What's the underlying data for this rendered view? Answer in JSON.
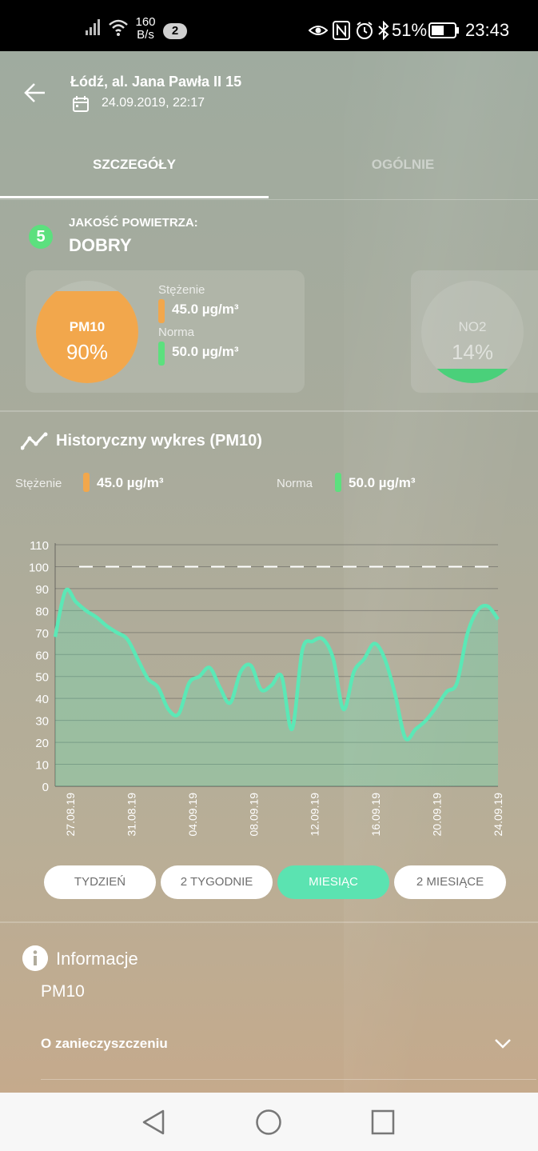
{
  "status_bar": {
    "net_speed_value": "160",
    "net_speed_unit": "B/s",
    "notification_count": "2",
    "battery": "51%",
    "time": "23:43"
  },
  "header": {
    "location": "Łódź, al. Jana Pawła II 15",
    "datetime": "24.09.2019, 22:17"
  },
  "tabs": [
    {
      "label": "SZCZEGÓŁY",
      "active": true
    },
    {
      "label": "OGÓLNIE",
      "active": false
    }
  ],
  "air_quality": {
    "index": "5",
    "label": "JAKOŚĆ POWIETRZA:",
    "value": "DOBRY"
  },
  "pollutants": [
    {
      "name": "PM10",
      "percent": "90%",
      "fill_fraction": 0.9,
      "color": "#f2a74c",
      "concentration_label": "Stężenie",
      "concentration": "45.0 µg/m³",
      "norm_label": "Norma",
      "norm": "50.0 µg/m³"
    },
    {
      "name": "NO2",
      "percent": "14%",
      "fill_fraction": 0.14,
      "color": "#4ad07a"
    }
  ],
  "history": {
    "title": "Historyczny wykres (PM10)",
    "legend": [
      {
        "label": "Stężenie",
        "value": "45.0 µg/m³",
        "color": "#f2a74c"
      },
      {
        "label": "Norma",
        "value": "50.0 µg/m³",
        "color": "#5ce07e"
      }
    ]
  },
  "chart_data": {
    "type": "area",
    "title": "Historyczny wykres (PM10)",
    "xlabel": "",
    "ylabel": "",
    "ylim": [
      0,
      110
    ],
    "yticks": [
      0,
      10,
      20,
      30,
      40,
      50,
      60,
      70,
      80,
      90,
      100,
      110
    ],
    "threshold": 100,
    "x_tick_labels": [
      "27.08.19",
      "31.08.19",
      "04.09.19",
      "08.09.19",
      "12.09.19",
      "16.09.19",
      "20.09.19",
      "24.09.19"
    ],
    "x_start": "27.08.19",
    "x_end": "24.09.19",
    "color": "#5be8b6",
    "series": [
      {
        "values": [
          68,
          89,
          84,
          80,
          77,
          73,
          70,
          67,
          58,
          49,
          45,
          35,
          33,
          47,
          50,
          54,
          45,
          38,
          52,
          55,
          44,
          46,
          50,
          26,
          62,
          66,
          67,
          58,
          35,
          52,
          58,
          65,
          58,
          42,
          22,
          26,
          30,
          36,
          43,
          47,
          69,
          80,
          82,
          76
        ]
      }
    ]
  },
  "range_buttons": [
    {
      "label": "TYDZIEŃ",
      "active": false
    },
    {
      "label": "2 TYGODNIE",
      "active": false
    },
    {
      "label": "MIESIĄC",
      "active": true
    },
    {
      "label": "2 MIESIĄCE",
      "active": false
    }
  ],
  "info": {
    "title": "Informacje",
    "pollutant": "PM10",
    "row_label": "O zanieczyszczeniu"
  }
}
